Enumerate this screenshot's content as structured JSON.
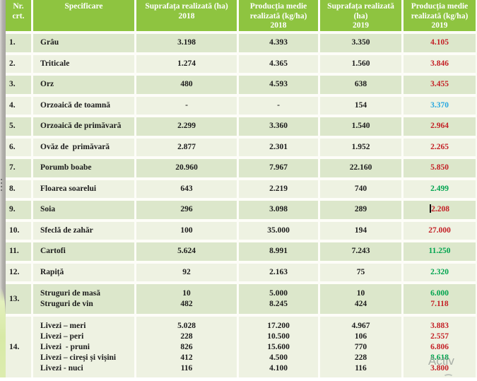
{
  "colors": {
    "header_bg": "#8ec440",
    "row_odd": "#dce7cb",
    "row_even": "#eef2e2",
    "red": "#c42127",
    "green": "#00a44f",
    "blue": "#27a7e0"
  },
  "watermark": {
    "line1": "Activ"
  },
  "table": {
    "columns": [
      {
        "id": "nr",
        "lines": [
          "Nr.",
          "crt."
        ]
      },
      {
        "id": "specificare",
        "lines": [
          "Specificare"
        ]
      },
      {
        "id": "area-2018",
        "lines": [
          "Suprafața realizată (ha)",
          "2018"
        ]
      },
      {
        "id": "yield-2018",
        "lines": [
          "Producția medie",
          "realizată (kg/ha)",
          "2018"
        ]
      },
      {
        "id": "area-2019",
        "lines": [
          "Suprafața realizată",
          "(ha)",
          "2019"
        ]
      },
      {
        "id": "yield-2019",
        "lines": [
          "Producția medie",
          "realizată (kg/ha)",
          "2019"
        ]
      }
    ],
    "rows": [
      {
        "nr": "1.",
        "name": [
          "Grâu"
        ],
        "area2018": [
          "3.198"
        ],
        "yield2018": [
          "4.393"
        ],
        "area2019": [
          "3.350"
        ],
        "yield2019": [
          {
            "text": "4.105",
            "color": "red"
          }
        ]
      },
      {
        "nr": "2.",
        "name": [
          "Triticale"
        ],
        "area2018": [
          "1.274"
        ],
        "yield2018": [
          "4.365"
        ],
        "area2019": [
          "1.560"
        ],
        "yield2019": [
          {
            "text": "3.846",
            "color": "red"
          }
        ]
      },
      {
        "nr": "3.",
        "name": [
          "Orz"
        ],
        "area2018": [
          "480"
        ],
        "yield2018": [
          "4.593"
        ],
        "area2019": [
          "638"
        ],
        "yield2019": [
          {
            "text": "3.455",
            "color": "red"
          }
        ]
      },
      {
        "nr": "4.",
        "name": [
          "Orzoaică de toamnă"
        ],
        "area2018": [
          "-"
        ],
        "yield2018": [
          "-"
        ],
        "area2019": [
          "154"
        ],
        "yield2019": [
          {
            "text": "3.370",
            "color": "blue"
          }
        ]
      },
      {
        "nr": "5.",
        "name": [
          "Orzoaică de primăvară"
        ],
        "area2018": [
          "2.299"
        ],
        "yield2018": [
          "3.360"
        ],
        "area2019": [
          "1.540"
        ],
        "yield2019": [
          {
            "text": "2.964",
            "color": "red"
          }
        ]
      },
      {
        "nr": "6.",
        "name": [
          "Ovăz de  primăvară"
        ],
        "area2018": [
          "2.877"
        ],
        "yield2018": [
          "2.301"
        ],
        "area2019": [
          "1.952"
        ],
        "yield2019": [
          {
            "text": "2.265",
            "color": "red"
          }
        ]
      },
      {
        "nr": "7.",
        "name": [
          "Porumb boabe"
        ],
        "area2018": [
          "20.960"
        ],
        "yield2018": [
          "7.967"
        ],
        "area2019": [
          "22.160"
        ],
        "yield2019": [
          {
            "text": "5.850",
            "color": "red"
          }
        ]
      },
      {
        "nr": "8.",
        "name": [
          "Floarea soarelui"
        ],
        "area2018": [
          "643"
        ],
        "yield2018": [
          "2.219"
        ],
        "area2019": [
          "740"
        ],
        "yield2019": [
          {
            "text": "2.499",
            "color": "green"
          }
        ]
      },
      {
        "nr": "9.",
        "name": [
          "Soia"
        ],
        "area2018": [
          "296"
        ],
        "yield2018": [
          "3.098"
        ],
        "area2019": [
          "289"
        ],
        "yield2019": [
          {
            "text": "2.208",
            "color": "red",
            "caret": true
          }
        ]
      },
      {
        "nr": "10.",
        "name": [
          "Sfeclă de zahăr"
        ],
        "area2018": [
          "100"
        ],
        "yield2018": [
          "35.000"
        ],
        "area2019": [
          "194"
        ],
        "yield2019": [
          {
            "text": "27.000",
            "color": "red"
          }
        ]
      },
      {
        "nr": "11.",
        "name": [
          "Cartofi"
        ],
        "area2018": [
          "5.624"
        ],
        "yield2018": [
          "8.991"
        ],
        "area2019": [
          "7.243"
        ],
        "yield2019": [
          {
            "text": "11.250",
            "color": "green"
          }
        ]
      },
      {
        "nr": "12.",
        "name": [
          "Rapiță"
        ],
        "area2018": [
          "92"
        ],
        "yield2018": [
          "2.163"
        ],
        "area2019": [
          "75"
        ],
        "yield2019": [
          {
            "text": "2.320",
            "color": "green"
          }
        ]
      },
      {
        "nr": "13.",
        "name": [
          "Struguri de masă",
          "Struguri de vin"
        ],
        "area2018": [
          "10",
          "482"
        ],
        "yield2018": [
          "5.000",
          "8.245"
        ],
        "area2019": [
          "10",
          "424"
        ],
        "yield2019": [
          {
            "text": "6.000",
            "color": "green"
          },
          {
            "text": "7.118",
            "color": "red"
          }
        ]
      },
      {
        "nr": "14.",
        "name": [
          "Livezi – meri",
          "Livezi – peri",
          "Livezi  - pruni",
          "Livezi – cireși și vișini",
          "Livezi - nuci"
        ],
        "area2018": [
          "5.028",
          "228",
          "826",
          "412",
          "116"
        ],
        "yield2018": [
          "17.200",
          "10.500",
          "15.600",
          "4.500",
          "4.100"
        ],
        "area2019": [
          "4.967",
          "106",
          "770",
          "228",
          "116"
        ],
        "yield2019": [
          {
            "text": "3.883",
            "color": "red"
          },
          {
            "text": "2.557",
            "color": "red"
          },
          {
            "text": "6.806",
            "color": "red"
          },
          {
            "text": "8.618",
            "color": "green"
          },
          {
            "text": "3.800",
            "color": "red"
          }
        ]
      }
    ]
  }
}
